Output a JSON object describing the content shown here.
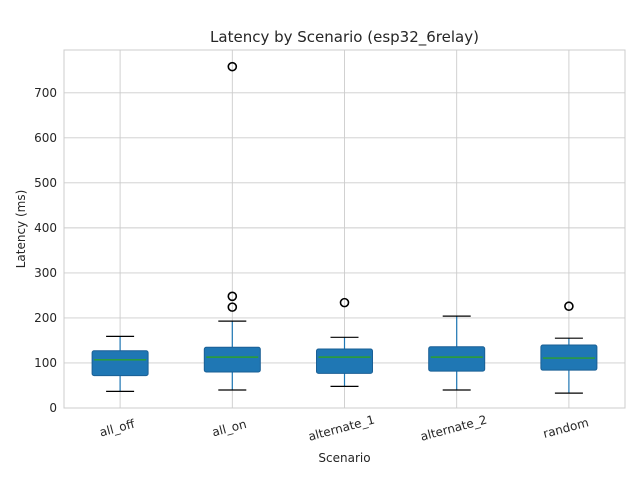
{
  "chart_data": {
    "type": "boxplot",
    "title": "Latency by Scenario (esp32_6relay)",
    "xlabel": "Scenario",
    "ylabel": "Latency (ms)",
    "ylim": [
      0,
      795
    ],
    "yticks": [
      0,
      100,
      200,
      300,
      400,
      500,
      600,
      700
    ],
    "grid": true,
    "box_color": "#1f77b4",
    "median_color": "#2ca02c",
    "categories": [
      "all_off",
      "all_on",
      "alternate_1",
      "alternate_2",
      "random"
    ],
    "boxes": [
      {
        "whisker_low": 37,
        "q1": 72,
        "median": 107,
        "q3": 127,
        "whisker_high": 159,
        "outliers": []
      },
      {
        "whisker_low": 40,
        "q1": 80,
        "median": 113,
        "q3": 135,
        "whisker_high": 193,
        "outliers": [
          224,
          248,
          758
        ]
      },
      {
        "whisker_low": 48,
        "q1": 77,
        "median": 113,
        "q3": 131,
        "whisker_high": 157,
        "outliers": [
          234
        ]
      },
      {
        "whisker_low": 40,
        "q1": 82,
        "median": 113,
        "q3": 136,
        "whisker_high": 204,
        "outliers": []
      },
      {
        "whisker_low": 33,
        "q1": 84,
        "median": 111,
        "q3": 140,
        "whisker_high": 155,
        "outliers": [
          226
        ]
      }
    ]
  }
}
